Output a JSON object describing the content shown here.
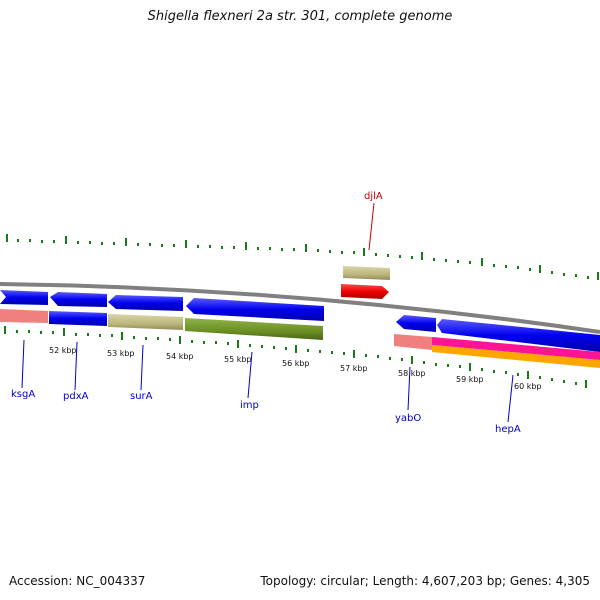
{
  "title": "Shigella flexneri 2a str. 301, complete genome",
  "accession": "Accession: NC_004337",
  "topology": "Topology: circular; Length: 4,607,203 bp; Genes: 4,305",
  "scale_labels": [
    "52 kbp",
    "53 kbp",
    "54 kbp",
    "55 kbp",
    "56 kbp",
    "57 kbp",
    "58 kbp",
    "59 kbp",
    "60 kbp"
  ],
  "gene_labels": {
    "djlA": "djlA",
    "ksgA": "ksgA",
    "pdxA": "pdxA",
    "surA": "surA",
    "imp": "imp",
    "yabO": "yabO",
    "hepA": "hepA"
  },
  "colors": {
    "cds": "#0000ee",
    "rna_tan": "#c2bd82",
    "gene_green": "#6b8e23",
    "salmon": "#f08080",
    "red": "#ee0000",
    "magenta": "#ff1493",
    "orange": "#ffa500",
    "backbone": "#808080",
    "tick": "#1a7a1a",
    "label_blue": "#0000cc",
    "label_red": "#cc0000"
  }
}
